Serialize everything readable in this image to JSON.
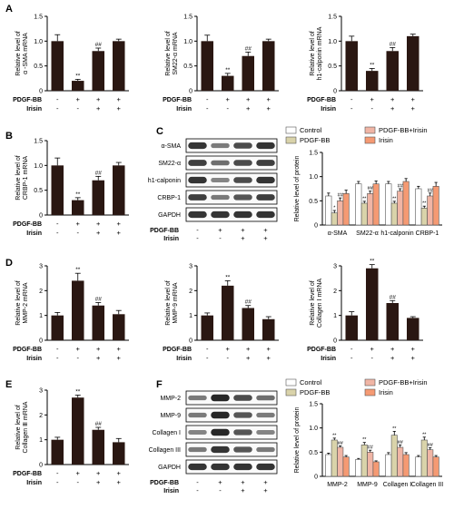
{
  "figure": {
    "panels": [
      {
        "key": "A",
        "label": "A"
      },
      {
        "key": "B",
        "label": "B"
      },
      {
        "key": "C",
        "label": "C"
      },
      {
        "key": "D",
        "label": "D"
      },
      {
        "key": "E",
        "label": "E"
      },
      {
        "key": "F",
        "label": "F"
      }
    ],
    "treatment_labels": {
      "pdgf": "PDGF-BB",
      "irisin": "Irisin"
    },
    "treatment_signs": {
      "pdgf": [
        "-",
        "+",
        "+",
        "+"
      ],
      "irisin": [
        "-",
        "-",
        "+",
        "+"
      ]
    },
    "legend": [
      "Control",
      "PDGF-BB",
      "PDGF-BB+Irisin",
      "Irisin"
    ],
    "colors": {
      "bar_single": "#2a1712",
      "group": [
        "#ffffff",
        "#d9d3aa",
        "#f0b5a5",
        "#f59a73"
      ],
      "blot_bg": "#fafafa",
      "blot_band": "#101010"
    },
    "blots": {
      "C": {
        "rows": [
          "α-SMA",
          "SM22-α",
          "h1-calponin",
          "CRBP-1",
          "GAPDH"
        ],
        "intensity": [
          [
            0.85,
            0.55,
            0.75,
            0.85
          ],
          [
            0.8,
            0.6,
            0.75,
            0.8
          ],
          [
            0.85,
            0.5,
            0.75,
            0.85
          ],
          [
            0.8,
            0.55,
            0.7,
            0.8
          ],
          [
            0.85,
            0.85,
            0.85,
            0.85
          ]
        ]
      },
      "F": {
        "rows": [
          "MMP-2",
          "MMP-9",
          "Collagen I",
          "Collagen III",
          "GAPDH"
        ],
        "intensity": [
          [
            0.55,
            0.9,
            0.75,
            0.6
          ],
          [
            0.55,
            0.9,
            0.7,
            0.55
          ],
          [
            0.5,
            0.9,
            0.7,
            0.5
          ],
          [
            0.55,
            0.85,
            0.7,
            0.55
          ],
          [
            0.85,
            0.85,
            0.85,
            0.85
          ]
        ]
      }
    }
  },
  "chart_data": [
    {
      "id": "A1",
      "panel": "A",
      "type": "bar",
      "ylabel": "Relative level of\nα -SMA mRNA",
      "ylim": [
        0,
        1.5
      ],
      "yticks": [
        0,
        0.5,
        1.0,
        1.5
      ],
      "values": [
        1.0,
        0.2,
        0.8,
        1.0
      ],
      "errors": [
        0.13,
        0.03,
        0.06,
        0.04
      ],
      "annotations": [
        "",
        "**",
        "##",
        ""
      ]
    },
    {
      "id": "A2",
      "panel": "A",
      "type": "bar",
      "ylabel": "Relative level of\nSM22-α mRNA",
      "ylim": [
        0,
        1.5
      ],
      "yticks": [
        0,
        0.5,
        1.0,
        1.5
      ],
      "values": [
        1.0,
        0.3,
        0.7,
        1.0
      ],
      "errors": [
        0.12,
        0.05,
        0.08,
        0.04
      ],
      "annotations": [
        "",
        "**",
        "##",
        ""
      ]
    },
    {
      "id": "A3",
      "panel": "A",
      "type": "bar",
      "ylabel": "Relative level of\nh1-calponin mRNA",
      "ylim": [
        0,
        1.5
      ],
      "yticks": [
        0,
        0.5,
        1.0,
        1.5
      ],
      "values": [
        1.0,
        0.4,
        0.8,
        1.1
      ],
      "errors": [
        0.1,
        0.05,
        0.07,
        0.04
      ],
      "annotations": [
        "",
        "**",
        "##",
        ""
      ]
    },
    {
      "id": "B1",
      "panel": "B",
      "type": "bar",
      "ylabel": "Relative level of\nCRBP-1 mRNA",
      "ylim": [
        0,
        1.5
      ],
      "yticks": [
        0,
        0.5,
        1.0,
        1.5
      ],
      "values": [
        1.0,
        0.3,
        0.7,
        1.0
      ],
      "errors": [
        0.15,
        0.05,
        0.08,
        0.06
      ],
      "annotations": [
        "",
        "**",
        "##",
        ""
      ]
    },
    {
      "id": "C1",
      "panel": "C",
      "type": "bar",
      "grouped": true,
      "ylabel": "Relative level of protein",
      "ylim": [
        0,
        1.5
      ],
      "yticks": [
        0,
        0.5,
        1.0,
        1.5
      ],
      "categories": [
        "α-SMA",
        "SM22-α",
        "h1-calponin",
        "CRBP-1"
      ],
      "series": [
        {
          "name": "Control",
          "values": [
            0.6,
            0.85,
            0.85,
            0.75
          ],
          "errors": [
            0.06,
            0.05,
            0.05,
            0.05
          ]
        },
        {
          "name": "PDGF-BB",
          "values": [
            0.25,
            0.45,
            0.45,
            0.35
          ],
          "errors": [
            0.05,
            0.04,
            0.04,
            0.04
          ]
        },
        {
          "name": "PDGF-BB+Irisin",
          "values": [
            0.5,
            0.65,
            0.7,
            0.6
          ],
          "errors": [
            0.06,
            0.05,
            0.05,
            0.06
          ]
        },
        {
          "name": "Irisin",
          "values": [
            0.65,
            0.85,
            0.9,
            0.8
          ],
          "errors": [
            0.07,
            0.06,
            0.06,
            0.08
          ]
        }
      ],
      "annotations": [
        [
          "",
          "*",
          "##",
          ""
        ],
        [
          "",
          "**",
          "##",
          ""
        ],
        [
          "",
          "**",
          "##",
          ""
        ],
        [
          "",
          "**",
          "##",
          ""
        ]
      ]
    },
    {
      "id": "D1",
      "panel": "D",
      "type": "bar",
      "ylabel": "Relative level of\nMMP-2 mRNA",
      "ylim": [
        0,
        3
      ],
      "yticks": [
        0,
        1,
        2,
        3
      ],
      "values": [
        1.0,
        2.4,
        1.4,
        1.05
      ],
      "errors": [
        0.12,
        0.3,
        0.12,
        0.15
      ],
      "annotations": [
        "",
        "**",
        "##",
        ""
      ]
    },
    {
      "id": "D2",
      "panel": "D",
      "type": "bar",
      "ylabel": "Relative level of\nMMP-9 mRNA",
      "ylim": [
        0,
        3
      ],
      "yticks": [
        0,
        1,
        2,
        3
      ],
      "values": [
        1.0,
        2.2,
        1.3,
        0.85
      ],
      "errors": [
        0.1,
        0.2,
        0.1,
        0.1
      ],
      "annotations": [
        "",
        "**",
        "##",
        ""
      ]
    },
    {
      "id": "D3",
      "panel": "D",
      "type": "bar",
      "ylabel": "Relative level of\nCollagen Ⅰ mRNA",
      "ylim": [
        0,
        3
      ],
      "yticks": [
        0,
        1,
        2,
        3
      ],
      "values": [
        1.0,
        2.9,
        1.5,
        0.9
      ],
      "errors": [
        0.15,
        0.15,
        0.1,
        0.05
      ],
      "annotations": [
        "",
        "**",
        "##",
        ""
      ]
    },
    {
      "id": "E1",
      "panel": "E",
      "type": "bar",
      "ylabel": "Relative level of\nCollagen Ⅲ mRNA",
      "ylim": [
        0,
        3
      ],
      "yticks": [
        0,
        1,
        2,
        3
      ],
      "values": [
        1.0,
        2.7,
        1.4,
        0.9
      ],
      "errors": [
        0.1,
        0.1,
        0.1,
        0.15
      ],
      "annotations": [
        "",
        "**",
        "##",
        ""
      ]
    },
    {
      "id": "F1",
      "panel": "F",
      "type": "bar",
      "grouped": true,
      "ylabel": "Relative level of protein",
      "ylim": [
        0,
        1.5
      ],
      "yticks": [
        0,
        0.5,
        1.0,
        1.5
      ],
      "categories": [
        "MMP-2",
        "MMP-9",
        "Collagen I",
        "Collagen III"
      ],
      "series": [
        {
          "name": "Control",
          "values": [
            0.45,
            0.35,
            0.45,
            0.4
          ],
          "errors": [
            0.03,
            0.02,
            0.04,
            0.03
          ]
        },
        {
          "name": "PDGF-BB",
          "values": [
            0.75,
            0.65,
            0.85,
            0.75
          ],
          "errors": [
            0.04,
            0.05,
            0.08,
            0.06
          ]
        },
        {
          "name": "PDGF-BB+Irisin",
          "values": [
            0.6,
            0.5,
            0.6,
            0.55
          ],
          "errors": [
            0.03,
            0.04,
            0.05,
            0.04
          ]
        },
        {
          "name": "Irisin",
          "values": [
            0.4,
            0.3,
            0.45,
            0.4
          ],
          "errors": [
            0.03,
            0.02,
            0.04,
            0.03
          ]
        }
      ],
      "annotations": [
        [
          "",
          "**",
          "##",
          ""
        ],
        [
          "",
          "**",
          "##",
          ""
        ],
        [
          "",
          "**",
          "##",
          ""
        ],
        [
          "",
          "**",
          "##",
          ""
        ]
      ]
    }
  ]
}
